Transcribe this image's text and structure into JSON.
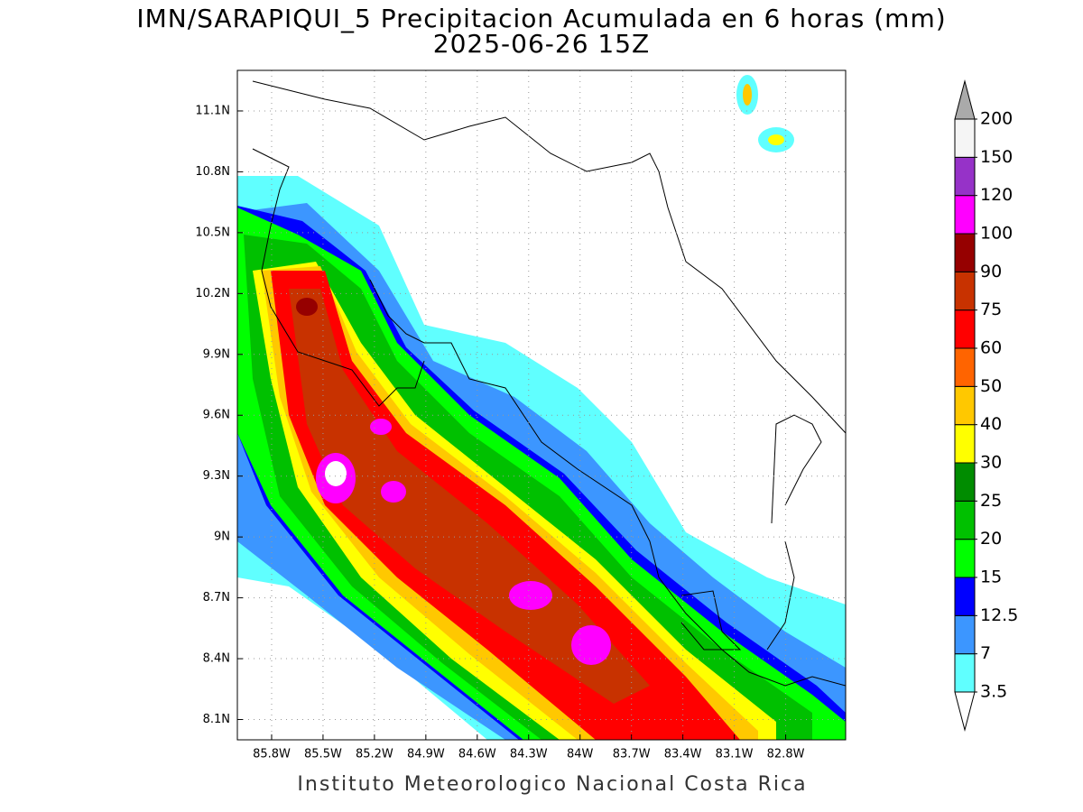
{
  "header": {
    "title": "IMN/SARAPIQUI_5 Precipitacion Acumulada en 6 horas (mm)",
    "subtitle": "2025-06-26 15Z"
  },
  "map": {
    "xlim": [
      -86.0,
      -82.45
    ],
    "ylim": [
      8.0,
      11.3
    ],
    "xticks": [
      {
        "value": -85.8,
        "label": "85.8W"
      },
      {
        "value": -85.5,
        "label": "85.5W"
      },
      {
        "value": -85.2,
        "label": "85.2W"
      },
      {
        "value": -84.9,
        "label": "84.9W"
      },
      {
        "value": -84.6,
        "label": "84.6W"
      },
      {
        "value": -84.3,
        "label": "84.3W"
      },
      {
        "value": -84.0,
        "label": "84W"
      },
      {
        "value": -83.7,
        "label": "83.7W"
      },
      {
        "value": -83.4,
        "label": "83.4W"
      },
      {
        "value": -83.1,
        "label": "83.1W"
      },
      {
        "value": -82.8,
        "label": "82.8W"
      }
    ],
    "yticks": [
      {
        "value": 8.1,
        "label": "8.1N"
      },
      {
        "value": 8.4,
        "label": "8.4N"
      },
      {
        "value": 8.7,
        "label": "8.7N"
      },
      {
        "value": 9.0,
        "label": "9N"
      },
      {
        "value": 9.3,
        "label": "9.3N"
      },
      {
        "value": 9.6,
        "label": "9.6N"
      },
      {
        "value": 9.9,
        "label": "9.9N"
      },
      {
        "value": 10.2,
        "label": "10.2N"
      },
      {
        "value": 10.5,
        "label": "10.5N"
      },
      {
        "value": 10.8,
        "label": "10.8N"
      },
      {
        "value": 11.1,
        "label": "11.1N"
      }
    ]
  },
  "colorbar": {
    "levels": [
      3.5,
      7,
      12.5,
      15,
      20,
      25,
      30,
      40,
      50,
      60,
      75,
      90,
      100,
      120,
      150,
      200
    ],
    "colors": [
      "#60ffff",
      "#3c96ff",
      "#0000ff",
      "#00ff00",
      "#00c000",
      "#008c00",
      "#ffff00",
      "#ffc800",
      "#ff6400",
      "#ff0000",
      "#c83200",
      "#960000",
      "#ff00ff",
      "#9632c8",
      "#f5f5f5"
    ],
    "under_color": "#ffffff",
    "over_color": "#aaaaaa"
  },
  "footer": "Instituto Meteorologico Nacional Costa Rica"
}
